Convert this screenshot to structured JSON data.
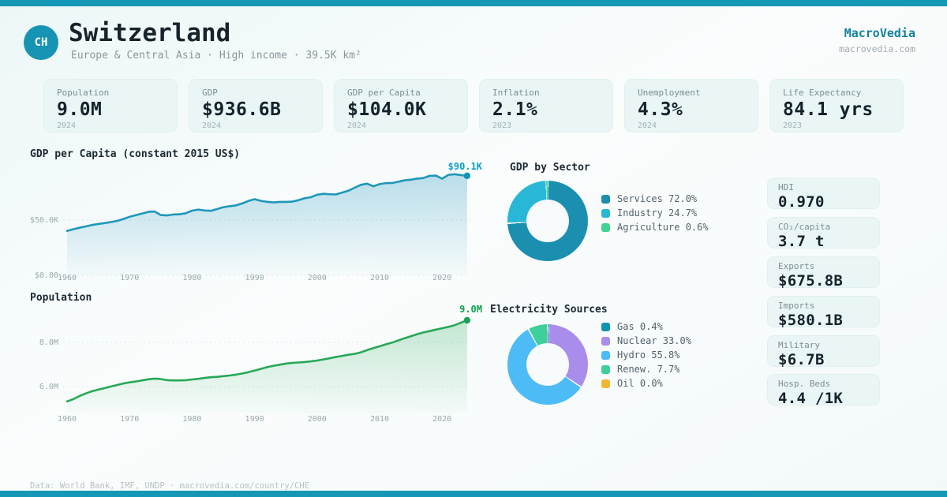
{
  "colors": {
    "accent": "#1597b6",
    "line_blue": "#1f97ba",
    "line_green": "#27a857"
  },
  "header": {
    "country_code": "CH",
    "title": "Switzerland",
    "subtitle": "Europe & Central Asia · High income · 39.5K km²"
  },
  "brand": {
    "name": "MacroVedia",
    "url": "macrovedia.com"
  },
  "stat_cards": [
    {
      "label": "Population",
      "value": "9.0M",
      "year": "2024"
    },
    {
      "label": "GDP",
      "value": "$936.6B",
      "year": "2024"
    },
    {
      "label": "GDP per Capita",
      "value": "$104.0K",
      "year": "2024"
    },
    {
      "label": "Inflation",
      "value": "2.1%",
      "year": "2023"
    },
    {
      "label": "Unemployment",
      "value": "4.3%",
      "year": "2024"
    },
    {
      "label": "Life Expectancy",
      "value": "84.1 yrs",
      "year": "2023"
    }
  ],
  "chart_data": [
    {
      "id": "gdp_per_capita",
      "type": "area",
      "title": "GDP per Capita (constant 2015 US$)",
      "x_start": 1960,
      "x_end": 2024,
      "xticks": [
        1960,
        1970,
        1980,
        1990,
        2000,
        2010,
        2020
      ],
      "yticks": [
        {
          "label": "$0.00",
          "value": 0
        },
        {
          "label": "$50.0K",
          "value": 50
        }
      ],
      "unit": "thousand constant 2015 US$",
      "end_label": "$90.1K",
      "end_value": 90.1,
      "values": [
        40.2,
        41.8,
        43.1,
        44.3,
        45.6,
        46.5,
        47.3,
        48.2,
        49.3,
        51.0,
        53.0,
        54.4,
        55.9,
        57.4,
        57.8,
        54.6,
        54.2,
        55.1,
        55.3,
        56.2,
        58.6,
        59.5,
        58.7,
        58.4,
        60.0,
        61.7,
        62.6,
        63.3,
        65.1,
        67.3,
        68.9,
        67.4,
        66.6,
        66.0,
        66.5,
        66.5,
        66.7,
        68.0,
        69.8,
        70.7,
        73.0,
        73.8,
        73.4,
        73.2,
        74.9,
        76.6,
        79.3,
        81.9,
        83.0,
        80.6,
        82.6,
        83.5,
        83.6,
        84.7,
        86.1,
        86.6,
        87.6,
        88.1,
        90.1,
        90.3,
        87.5,
        90.9,
        91.6,
        90.8,
        90.1
      ]
    },
    {
      "id": "population",
      "type": "area",
      "title": "Population",
      "x_start": 1960,
      "x_end": 2024,
      "xticks": [
        1960,
        1970,
        1980,
        1990,
        2000,
        2010,
        2020
      ],
      "yticks": [
        {
          "label": "6.0M",
          "value": 6
        },
        {
          "label": "8.0M",
          "value": 8
        }
      ],
      "unit": "million people",
      "end_label": "9.0M",
      "end_value": 9.0,
      "values": [
        5.33,
        5.43,
        5.57,
        5.69,
        5.79,
        5.86,
        5.93,
        6.0,
        6.07,
        6.14,
        6.19,
        6.23,
        6.28,
        6.33,
        6.36,
        6.34,
        6.29,
        6.28,
        6.28,
        6.29,
        6.32,
        6.35,
        6.39,
        6.42,
        6.44,
        6.47,
        6.5,
        6.54,
        6.59,
        6.65,
        6.72,
        6.8,
        6.88,
        6.94,
        6.99,
        7.04,
        7.07,
        7.09,
        7.11,
        7.14,
        7.18,
        7.23,
        7.28,
        7.34,
        7.39,
        7.44,
        7.48,
        7.55,
        7.65,
        7.74,
        7.82,
        7.91,
        7.99,
        8.09,
        8.19,
        8.28,
        8.37,
        8.45,
        8.51,
        8.58,
        8.64,
        8.7,
        8.78,
        8.89,
        9.0
      ]
    },
    {
      "id": "gdp_by_sector",
      "type": "donut",
      "title": "GDP by Sector",
      "slices": [
        {
          "text": "Services 72.0%",
          "value": 72.0,
          "color": "#1b8fb0"
        },
        {
          "text": "Industry 24.7%",
          "value": 24.7,
          "color": "#29b7d8"
        },
        {
          "text": "Agriculture 0.6%",
          "value": 0.6,
          "color": "#42d392"
        }
      ]
    },
    {
      "id": "electricity_sources",
      "type": "donut",
      "title": "Electricity Sources",
      "slices": [
        {
          "text": "Gas 0.4%",
          "value": 0.4,
          "color": "#0f93b4"
        },
        {
          "text": "Nuclear 33.0%",
          "value": 33.0,
          "color": "#a98ded"
        },
        {
          "text": "Hydro 55.8%",
          "value": 55.8,
          "color": "#4dbbf5"
        },
        {
          "text": "Renew. 7.7%",
          "value": 7.7,
          "color": "#3ecf9a"
        },
        {
          "text": "Oil 0.0%",
          "value": 0.0,
          "color": "#f2b632"
        }
      ]
    }
  ],
  "side_stats": [
    {
      "label": "HDI",
      "value": "0.970"
    },
    {
      "label": "CO₂/capita",
      "value": "3.7 t"
    },
    {
      "label": "Exports",
      "value": "$675.8B"
    },
    {
      "label": "Imports",
      "value": "$580.1B"
    },
    {
      "label": "Military",
      "value": "$6.7B"
    },
    {
      "label": "Hosp. Beds",
      "value": "4.4 /1K"
    }
  ],
  "footer": {
    "text": "Data: World Bank, IMF, UNDP · macrovedia.com/country/CHE"
  }
}
